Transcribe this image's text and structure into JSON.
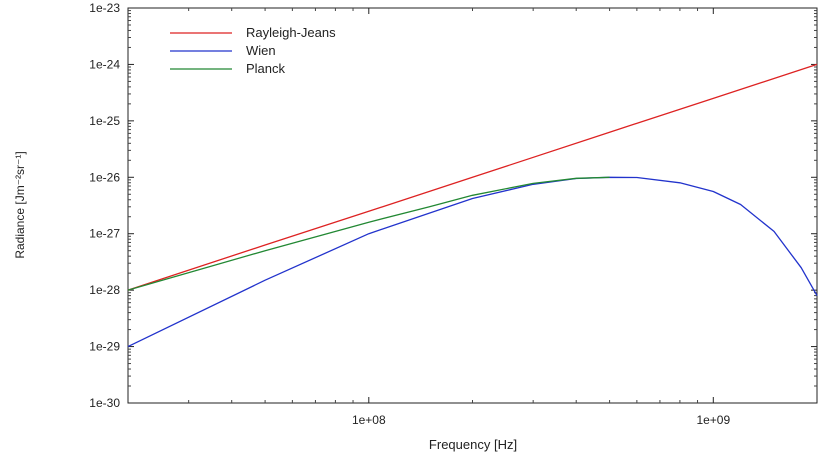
{
  "chart_data": {
    "type": "line",
    "title": "",
    "xlabel": "Frequency [Hz]",
    "ylabel": "Radiance [Jm⁻²sr⁻¹]",
    "xscale": "log",
    "yscale": "log",
    "xlim": [
      20000000,
      2000000000
    ],
    "ylim": [
      1e-30,
      1e-23
    ],
    "x_ticks": [
      {
        "value": 100000000,
        "label": "1e+08"
      },
      {
        "value": 1000000000,
        "label": "1e+09"
      }
    ],
    "y_ticks": [
      {
        "value": 1e-23,
        "label": "1e-23"
      },
      {
        "value": 1e-24,
        "label": "1e-24"
      },
      {
        "value": 1e-25,
        "label": "1e-25"
      },
      {
        "value": 1e-26,
        "label": "1e-26"
      },
      {
        "value": 1e-27,
        "label": "1e-27"
      },
      {
        "value": 1e-28,
        "label": "1e-28"
      },
      {
        "value": 1e-29,
        "label": "1e-29"
      },
      {
        "value": 1e-30,
        "label": "1e-30"
      }
    ],
    "grid": false,
    "legend_position": "top-left",
    "series": [
      {
        "name": "Rayleigh-Jeans",
        "color": "#dd2222",
        "x": [
          20000000,
          50000000,
          100000000,
          200000000,
          500000000,
          1000000000,
          2000000000
        ],
        "y": [
          1e-28,
          6.3e-28,
          2.5e-27,
          1e-26,
          6.3e-26,
          2.5e-25,
          1e-24
        ]
      },
      {
        "name": "Wien",
        "color": "#2233cc",
        "x": [
          20000000,
          50000000,
          100000000,
          200000000,
          300000000,
          400000000,
          500000000,
          600000000,
          800000000,
          1000000000,
          1200000000,
          1500000000,
          1800000000,
          2000000000
        ],
        "y": [
          1e-29,
          1.5e-28,
          1e-27,
          4.2e-27,
          7.5e-27,
          9.5e-27,
          1e-26,
          9.9e-27,
          8e-27,
          5.6e-27,
          3.3e-27,
          1.1e-27,
          2.5e-28,
          8e-29
        ]
      },
      {
        "name": "Planck",
        "color": "#228833",
        "x": [
          20000000,
          50000000,
          100000000,
          150000000,
          200000000,
          300000000,
          400000000,
          500000000
        ],
        "y": [
          1e-28,
          5e-28,
          1.6e-27,
          3e-27,
          4.8e-27,
          7.8e-27,
          9.6e-27,
          1e-26
        ]
      }
    ]
  }
}
